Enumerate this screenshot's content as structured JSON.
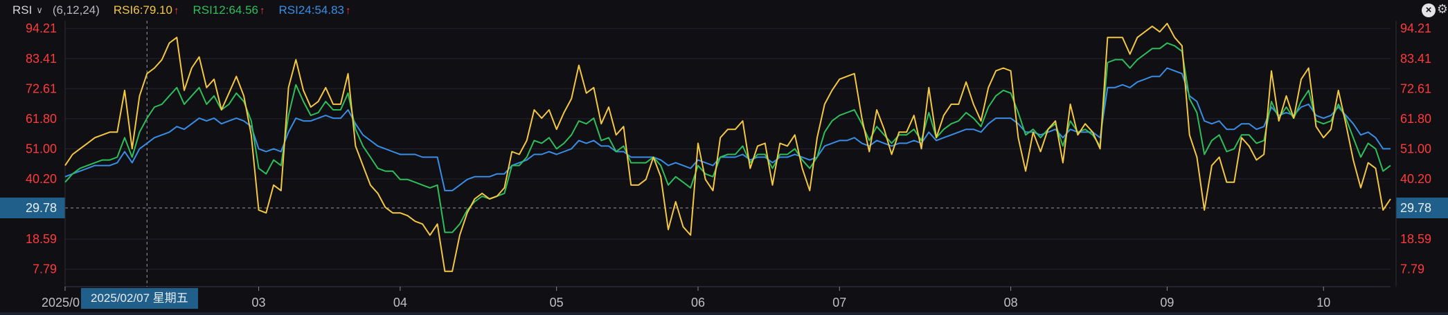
{
  "header": {
    "indicator": "RSI",
    "params": "(6,12,24)",
    "series": [
      {
        "label": "RSI6:79.10",
        "color": "#f5c842"
      },
      {
        "label": "RSI12:64.56",
        "color": "#2fbf5a"
      },
      {
        "label": "RSI24:54.83",
        "color": "#3a8ee6"
      }
    ],
    "arrow": "↑",
    "close": "×",
    "gear": "⚙"
  },
  "crosshair_label": "2025/02/07 星期五",
  "current_value": "29.78",
  "colors": {
    "background": "#0f0f14",
    "grid": "#24242c",
    "axis_label": "#ff3b3b",
    "highlight": "#1f5f8a"
  },
  "chart_data": {
    "type": "line",
    "title": "",
    "xlabel": "",
    "ylabel": "",
    "ylim": [
      1.5,
      97
    ],
    "yticks": [
      94.21,
      83.41,
      72.61,
      61.8,
      51.0,
      40.2,
      29.78,
      18.59,
      7.79
    ],
    "ytick_labels": [
      "94.21",
      "83.41",
      "72.61",
      "61.80",
      "51.00",
      "40.20",
      "29.78",
      "18.59",
      "7.79"
    ],
    "xticks": [
      {
        "index": 0,
        "label": "2025/0"
      },
      {
        "index": 26,
        "label": "03"
      },
      {
        "index": 45,
        "label": "04"
      },
      {
        "index": 66,
        "label": "05"
      },
      {
        "index": 85,
        "label": "06"
      },
      {
        "index": 104,
        "label": "07"
      },
      {
        "index": 127,
        "label": "08"
      },
      {
        "index": 148,
        "label": "09"
      },
      {
        "index": 169,
        "label": "10"
      }
    ],
    "crosshair_index": 11,
    "reference_value": 29.78,
    "series": [
      {
        "name": "RSI6",
        "color": "#f5c842",
        "values": [
          45,
          49,
          51,
          53,
          55,
          56,
          57,
          57,
          72,
          51,
          70,
          78,
          80,
          83,
          89,
          91,
          72,
          80,
          84,
          73,
          76,
          65,
          71,
          77,
          70,
          56,
          29,
          28,
          38,
          36,
          73,
          83,
          72,
          66,
          68,
          73,
          67,
          67,
          78,
          52,
          45,
          38,
          35,
          30,
          28,
          28,
          27,
          25,
          24,
          20,
          24,
          7,
          7,
          20,
          28,
          33,
          35,
          33,
          34,
          37,
          50,
          49,
          54,
          65,
          62,
          65,
          58,
          64,
          69,
          81,
          71,
          73,
          60,
          66,
          56,
          59,
          38,
          38,
          40,
          48,
          41,
          22,
          32,
          23,
          20,
          53,
          40,
          36,
          55,
          58,
          58,
          61,
          44,
          52,
          53,
          38,
          53,
          52,
          56,
          44,
          36,
          55,
          67,
          72,
          76,
          77,
          78,
          62,
          50,
          65,
          58,
          49,
          57,
          57,
          63,
          51,
          73,
          55,
          63,
          67,
          67,
          75,
          67,
          61,
          73,
          79,
          80,
          79,
          55,
          43,
          57,
          50,
          58,
          61,
          46,
          67,
          56,
          60,
          57,
          51,
          91,
          91,
          91,
          85,
          91,
          93,
          95,
          93,
          96,
          91,
          88,
          56,
          48,
          29,
          45,
          48,
          39,
          39,
          55,
          52,
          47,
          49,
          79,
          61,
          70,
          62,
          76,
          80,
          59,
          55,
          58,
          72,
          60,
          47,
          37,
          46,
          44,
          29,
          33
        ]
      },
      {
        "name": "RSI12",
        "color": "#2fbf5a",
        "values": [
          39,
          42,
          44,
          45,
          46,
          47,
          47,
          48,
          55,
          48,
          57,
          62,
          66,
          67,
          70,
          73,
          67,
          70,
          73,
          67,
          70,
          65,
          67,
          71,
          68,
          61,
          44,
          42,
          47,
          45,
          63,
          74,
          68,
          63,
          64,
          68,
          65,
          65,
          71,
          58,
          52,
          48,
          44,
          43,
          43,
          40,
          40,
          39,
          38,
          37,
          38,
          21,
          21,
          24,
          29,
          32,
          34,
          33,
          34,
          35,
          45,
          45,
          48,
          54,
          53,
          55,
          51,
          53,
          56,
          61,
          60,
          62,
          54,
          55,
          50,
          52,
          46,
          46,
          46,
          48,
          45,
          38,
          41,
          39,
          37,
          45,
          42,
          41,
          48,
          49,
          49,
          52,
          46,
          49,
          49,
          44,
          49,
          49,
          51,
          47,
          44,
          48,
          57,
          61,
          63,
          64,
          65,
          60,
          54,
          59,
          56,
          53,
          56,
          56,
          58,
          54,
          64,
          55,
          58,
          60,
          61,
          64,
          62,
          59,
          66,
          70,
          72,
          71,
          64,
          56,
          58,
          55,
          58,
          60,
          52,
          61,
          57,
          58,
          56,
          52,
          82,
          83,
          83,
          80,
          83,
          85,
          87,
          87,
          89,
          88,
          86,
          69,
          64,
          49,
          54,
          56,
          50,
          51,
          56,
          56,
          53,
          54,
          68,
          62,
          66,
          62,
          68,
          72,
          61,
          60,
          61,
          67,
          62,
          55,
          48,
          53,
          51,
          43,
          45
        ]
      },
      {
        "name": "RSI24",
        "color": "#3a8ee6",
        "values": [
          41,
          42,
          43,
          44,
          45,
          45,
          45,
          46,
          50,
          46,
          51,
          53,
          55,
          56,
          57,
          59,
          58,
          60,
          62,
          61,
          62,
          60,
          61,
          62,
          61,
          59,
          51,
          50,
          51,
          50,
          57,
          62,
          61,
          61,
          62,
          63,
          62,
          62,
          65,
          60,
          56,
          54,
          52,
          51,
          50,
          49,
          49,
          49,
          48,
          48,
          48,
          36,
          36,
          38,
          40,
          41,
          41,
          41,
          42,
          42,
          45,
          46,
          47,
          49,
          49,
          50,
          49,
          50,
          51,
          54,
          53,
          54,
          52,
          52,
          50,
          50,
          48,
          48,
          48,
          48,
          47,
          45,
          46,
          45,
          44,
          47,
          46,
          45,
          48,
          48,
          48,
          49,
          47,
          48,
          48,
          46,
          48,
          48,
          49,
          48,
          47,
          48,
          52,
          53,
          54,
          54,
          55,
          53,
          52,
          54,
          53,
          52,
          53,
          53,
          54,
          53,
          57,
          54,
          55,
          56,
          57,
          58,
          58,
          57,
          60,
          62,
          62,
          62,
          60,
          57,
          57,
          56,
          57,
          58,
          55,
          58,
          57,
          57,
          57,
          55,
          73,
          73,
          74,
          73,
          75,
          76,
          77,
          77,
          80,
          79,
          78,
          70,
          68,
          61,
          60,
          61,
          58,
          58,
          60,
          60,
          58,
          59,
          66,
          63,
          64,
          63,
          66,
          67,
          63,
          62,
          63,
          66,
          63,
          60,
          56,
          57,
          55,
          51,
          51
        ]
      }
    ]
  }
}
